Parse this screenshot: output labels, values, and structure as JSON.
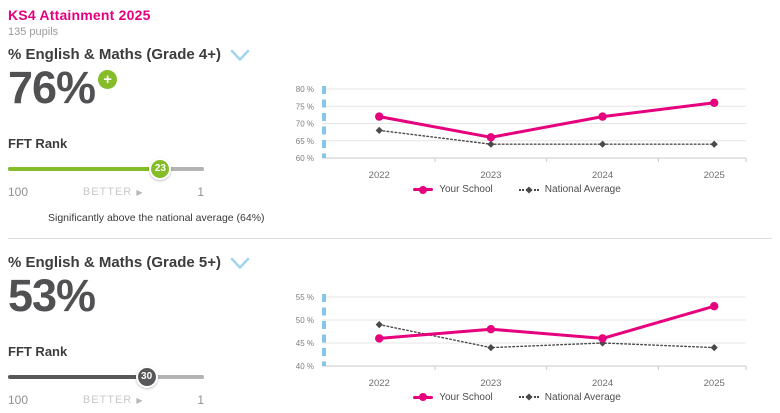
{
  "header": {
    "title": "KS4 Attainment 2025",
    "subtitle": "135 pupils"
  },
  "colors": {
    "brand_pink": "#e6007e",
    "positive_green": "#84bd28",
    "neutral_dark": "#58585a",
    "axis_blue": "#86c6e9",
    "chevron_blue": "#a5d4f0"
  },
  "rank_scale": {
    "left": "100",
    "middle": "BETTER",
    "arrow": "▶",
    "right": "1"
  },
  "sections": [
    {
      "title": "% English & Maths (Grade 4+)",
      "value": "76%",
      "badge": "+",
      "rank": {
        "label": "FFT Rank",
        "value": "23",
        "color": "#84bd28"
      },
      "note": "Significantly above the national average (64%)"
    },
    {
      "title": "% English & Maths (Grade 5+)",
      "value": "53%",
      "rank": {
        "label": "FFT Rank",
        "value": "30",
        "color": "#58585a"
      }
    }
  ],
  "chart_data": [
    {
      "type": "line",
      "x": [
        "2022",
        "2023",
        "2024",
        "2025"
      ],
      "series": [
        {
          "name": "Your School",
          "values": [
            72,
            66,
            72,
            76
          ],
          "color": "#e6007e",
          "style": "solid",
          "marker": "circle"
        },
        {
          "name": "National Average",
          "values": [
            68,
            64,
            64,
            64
          ],
          "color": "#4a4a4c",
          "style": "dotted",
          "marker": "diamond"
        }
      ],
      "ylim": [
        60,
        80
      ],
      "yticks": [
        60,
        65,
        70,
        75,
        80
      ],
      "ytick_suffix": " %",
      "grid": true,
      "legend_position": "bottom"
    },
    {
      "type": "line",
      "x": [
        "2022",
        "2023",
        "2024",
        "2025"
      ],
      "series": [
        {
          "name": "Your School",
          "values": [
            46,
            48,
            46,
            53
          ],
          "color": "#e6007e",
          "style": "solid",
          "marker": "circle"
        },
        {
          "name": "National Average",
          "values": [
            49,
            44,
            45,
            44
          ],
          "color": "#4a4a4c",
          "style": "dotted",
          "marker": "diamond"
        }
      ],
      "ylim": [
        40,
        55
      ],
      "yticks": [
        40,
        45,
        50,
        55
      ],
      "ytick_suffix": " %",
      "grid": true,
      "legend_position": "bottom"
    }
  ]
}
